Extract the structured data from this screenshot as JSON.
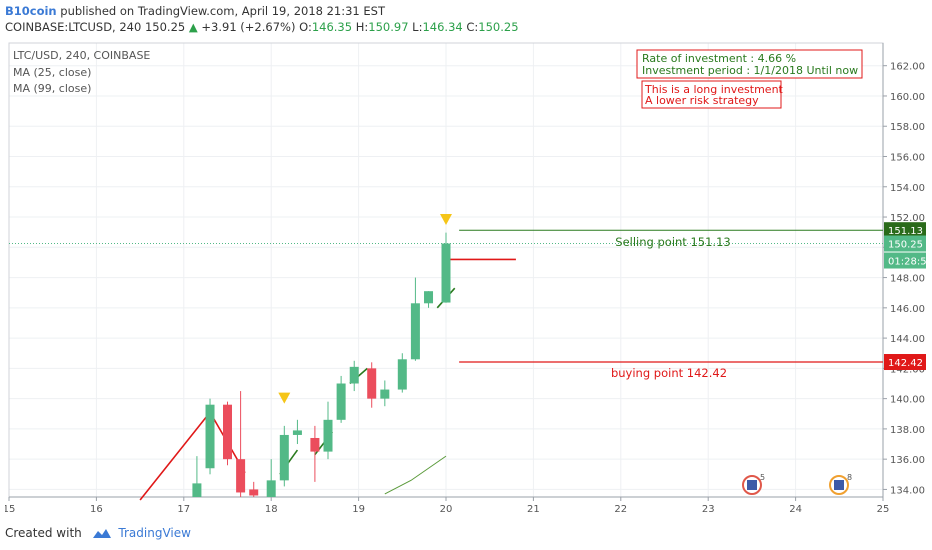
{
  "header": {
    "author": "B10coin",
    "published_text": "published on TradingView.com, April 19, 2018 21:31 EST",
    "symbol_line": "COINBASE:LTCUSD, 240",
    "last": "150.25",
    "change_arrow": "▲",
    "change": "+3.91 (+2.67%)",
    "o_label": "O:",
    "o": "146.35",
    "h_label": "H:",
    "h": "150.97",
    "l_label": "L:",
    "l": "146.34",
    "c_label": "C:",
    "c": "150.25"
  },
  "legend": {
    "title": "LTC/USD, 240, COINBASE",
    "ma1": "MA (25, close)",
    "ma2": "MA (99, close)"
  },
  "notes": {
    "box1_line1": "Rate of investment : 4.66 %",
    "box1_line2": "Investment period : 1/1/2018 Until now",
    "box2_line1": "This is a long investment",
    "box2_line2": "A lower risk strategy"
  },
  "annotations": {
    "selling": "Selling point 151.13",
    "buying": "buying point 142.42"
  },
  "price_labels": {
    "sell": "151.13",
    "last": "150.25",
    "countdown": "01:28:54",
    "buy": "142.42"
  },
  "events": {
    "badge1": "5",
    "badge2": "8"
  },
  "footer": {
    "created": "Created with",
    "brand": "TradingView"
  },
  "colors": {
    "up": "#53b987",
    "down": "#eb4d5c",
    "sell_line": "#2a7a1e",
    "buy_line": "#e01818",
    "marker": "#f5c518",
    "grid": "#eef0f3",
    "axis_text": "#555555"
  },
  "chart_data": {
    "type": "candlestick",
    "symbol": "LTC/USD",
    "interval": "240",
    "x_ticks": [
      "15",
      "16",
      "17",
      "18",
      "19",
      "20",
      "21",
      "22",
      "23",
      "24",
      "25"
    ],
    "y_ticks": [
      "134.00",
      "136.00",
      "138.00",
      "140.00",
      "142.00",
      "144.00",
      "146.00",
      "148.00",
      "150.00",
      "152.00",
      "154.00",
      "156.00",
      "158.00",
      "160.00",
      "162.00"
    ],
    "xlim": [
      15,
      25
    ],
    "ylim": [
      133.5,
      163.5
    ],
    "candles": [
      {
        "x": 17.15,
        "o": 133.3,
        "h": 136.2,
        "l": 132.5,
        "c": 134.4
      },
      {
        "x": 17.3,
        "o": 135.4,
        "h": 140.0,
        "l": 135.0,
        "c": 139.6
      },
      {
        "x": 17.5,
        "o": 139.6,
        "h": 139.8,
        "l": 135.6,
        "c": 136.0
      },
      {
        "x": 17.65,
        "o": 136.0,
        "h": 140.5,
        "l": 132.0,
        "c": 133.8
      },
      {
        "x": 17.8,
        "o": 134.0,
        "h": 134.5,
        "l": 133.2,
        "c": 133.6
      },
      {
        "x": 18.0,
        "o": 133.5,
        "h": 136.0,
        "l": 133.2,
        "c": 134.6
      },
      {
        "x": 18.15,
        "o": 134.6,
        "h": 138.2,
        "l": 134.2,
        "c": 137.6
      },
      {
        "x": 18.3,
        "o": 137.6,
        "h": 138.6,
        "l": 137.0,
        "c": 137.9
      },
      {
        "x": 18.5,
        "o": 137.4,
        "h": 138.2,
        "l": 134.5,
        "c": 136.5
      },
      {
        "x": 18.65,
        "o": 136.5,
        "h": 139.8,
        "l": 136.0,
        "c": 138.6
      },
      {
        "x": 18.8,
        "o": 138.6,
        "h": 141.5,
        "l": 138.4,
        "c": 141.0
      },
      {
        "x": 18.95,
        "o": 141.0,
        "h": 142.5,
        "l": 140.5,
        "c": 142.1
      },
      {
        "x": 19.15,
        "o": 142.0,
        "h": 142.4,
        "l": 139.4,
        "c": 140.0
      },
      {
        "x": 19.3,
        "o": 140.0,
        "h": 141.2,
        "l": 139.5,
        "c": 140.6
      },
      {
        "x": 19.5,
        "o": 140.6,
        "h": 143.0,
        "l": 140.4,
        "c": 142.6
      },
      {
        "x": 19.65,
        "o": 142.6,
        "h": 148.0,
        "l": 142.5,
        "c": 146.3
      },
      {
        "x": 19.8,
        "o": 146.3,
        "h": 147.1,
        "l": 146.0,
        "c": 147.1
      },
      {
        "x": 20.0,
        "o": 146.35,
        "h": 150.97,
        "l": 146.34,
        "c": 150.25
      }
    ],
    "levels": [
      {
        "name": "Selling point",
        "value": 151.13
      },
      {
        "name": "buying point",
        "value": 142.42
      }
    ],
    "last_price": 150.25,
    "arrows": [
      {
        "x": 18.15,
        "value": 140.0
      },
      {
        "x": 20.0,
        "value": 151.8
      }
    ],
    "red_trend": [
      [
        16.5,
        133.3
      ],
      [
        17.3,
        139.1
      ],
      [
        17.7,
        135.1
      ]
    ],
    "ma_line": [
      [
        19.3,
        133.7
      ],
      [
        19.6,
        134.6
      ],
      [
        20.0,
        136.2
      ]
    ],
    "drawing_segments": [
      {
        "from": [
          18.1,
          135.0
        ],
        "to": [
          18.3,
          136.6
        ],
        "color": "#2a7a1e"
      },
      {
        "from": [
          18.5,
          136.3
        ],
        "to": [
          18.7,
          137.8
        ],
        "color": "#2a7a1e"
      },
      {
        "from": [
          18.9,
          141.0
        ],
        "to": [
          19.1,
          142.0
        ],
        "color": "#2a7a1e"
      },
      {
        "from": [
          19.9,
          146.0
        ],
        "to": [
          20.1,
          147.3
        ],
        "color": "#2a7a1e"
      },
      {
        "from": [
          20.0,
          149.2
        ],
        "to": [
          20.8,
          149.2
        ],
        "color": "#e01818"
      }
    ],
    "event_badges_x": [
      23.5,
      24.5
    ]
  }
}
